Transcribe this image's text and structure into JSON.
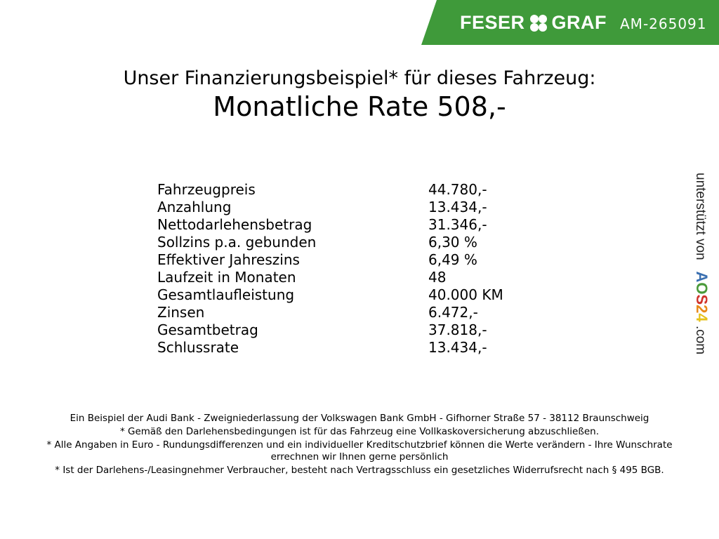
{
  "header": {
    "brand_left": "FESER",
    "brand_right": "GRAF",
    "listing_code": "AM-265091",
    "banner_color": "#3f9a3a"
  },
  "title": {
    "line1": "Unser Finanzierungsbeispiel* für dieses Fahrzeug:",
    "line2": "Monatliche Rate 508,-"
  },
  "rows": [
    {
      "label": "Fahrzeugpreis",
      "value": "44.780,-"
    },
    {
      "label": "Anzahlung",
      "value": "13.434,-"
    },
    {
      "label": "Nettodarlehensbetrag",
      "value": "31.346,-"
    },
    {
      "label": "Sollzins p.a. gebunden",
      "value": "6,30 %"
    },
    {
      "label": "Effektiver Jahreszins",
      "value": "6,49 %"
    },
    {
      "label": "Laufzeit in Monaten",
      "value": "48"
    },
    {
      "label": "Gesamtlaufleistung",
      "value": "40.000 KM"
    },
    {
      "label": "Zinsen",
      "value": "6.472,-"
    },
    {
      "label": "Gesamtbetrag",
      "value": "37.818,-"
    },
    {
      "label": "Schlussrate",
      "value": "13.434,-"
    }
  ],
  "side": {
    "text": "unterstützt von",
    "logo": [
      "A",
      "O",
      "S",
      "2",
      "4"
    ],
    "logo_colors": [
      "#3a6fb0",
      "#4a9a3a",
      "#d0332b",
      "#e88a1a",
      "#e6c21a"
    ],
    "suffix": ".com"
  },
  "footer": [
    "Ein Beispiel der Audi Bank - Zweigniederlassung der Volkswagen Bank GmbH - Gifhorner Straße 57 - 38112 Braunschweig",
    "* Gemäß den Darlehensbedingungen ist für das Fahrzeug eine Vollkaskoversicherung abzuschließen.",
    "* Alle Angaben in Euro - Rundungsdifferenzen und ein individueller Kreditschutzbrief können die Werte verändern - Ihre Wunschrate errechnen wir Ihnen gerne persönlich",
    "* Ist der Darlehens-/Leasingnehmer Verbraucher, besteht nach Vertragsschluss ein gesetzliches Widerrufsrecht nach § 495 BGB."
  ]
}
